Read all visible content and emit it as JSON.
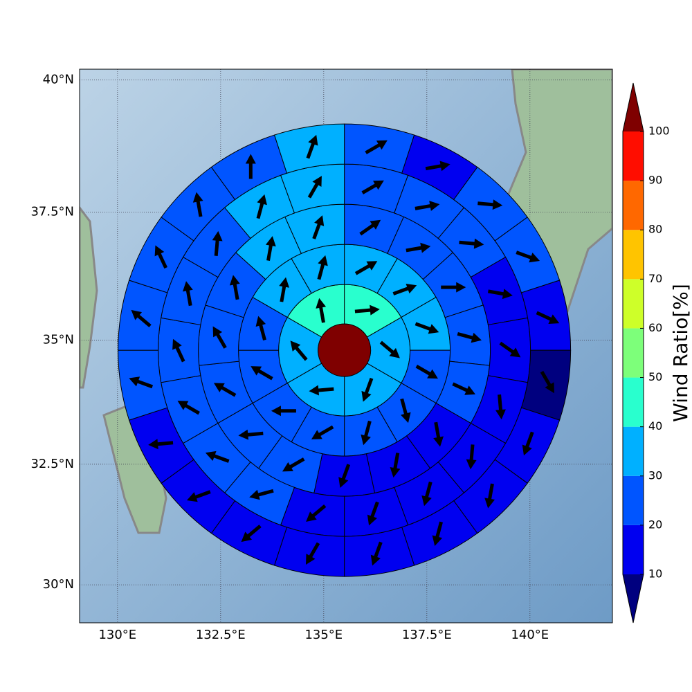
{
  "chart_data": {
    "type": "polar-grid-map",
    "projection": "mercator",
    "xlim": [
      129.08,
      142.0
    ],
    "ylim": [
      29.2,
      40.2
    ],
    "xticks": [
      {
        "value": 130,
        "label": "130°E"
      },
      {
        "value": 132.5,
        "label": "132.5°E"
      },
      {
        "value": 135,
        "label": "135°E"
      },
      {
        "value": 137.5,
        "label": "137.5°E"
      },
      {
        "value": 140,
        "label": "140°E"
      }
    ],
    "yticks": [
      {
        "value": 30,
        "label": "30°N"
      },
      {
        "value": 32.5,
        "label": "32.5°N"
      },
      {
        "value": 35,
        "label": "35°N"
      },
      {
        "value": 37.5,
        "label": "37.5°N"
      },
      {
        "value": 40,
        "label": "40°N"
      }
    ],
    "grid": true,
    "center": [
      135.5,
      34.8
    ],
    "center_value": 105,
    "rings": [
      {
        "values": [
          45,
          35,
          35,
          35,
          35,
          45
        ],
        "directions": [
          85,
          130,
          200,
          265,
          320,
          350
        ]
      },
      {
        "values": [
          35,
          35,
          35,
          25,
          25,
          25,
          25,
          25,
          25,
          25,
          35,
          35
        ],
        "directions": [
          60,
          70,
          110,
          120,
          165,
          195,
          240,
          270,
          300,
          345,
          10,
          15
        ]
      },
      {
        "values": [
          25,
          25,
          25,
          25,
          22,
          15,
          15,
          15,
          22,
          22,
          25,
          25,
          25,
          35,
          35
        ],
        "directions": [
          55,
          80,
          90,
          105,
          115,
          170,
          190,
          200,
          240,
          265,
          300,
          330,
          350,
          10,
          20
        ]
      },
      {
        "values": [
          25,
          25,
          25,
          18,
          15,
          15,
          15,
          15,
          15,
          15,
          22,
          25,
          25,
          25,
          25,
          25,
          35,
          35
        ],
        "directions": [
          60,
          80,
          95,
          100,
          125,
          175,
          185,
          195,
          200,
          230,
          255,
          290,
          300,
          335,
          350,
          5,
          15,
          30
        ]
      },
      {
        "values": [
          25,
          15,
          25,
          25,
          18,
          5,
          15,
          15,
          15,
          15,
          15,
          15,
          15,
          15,
          25,
          25,
          25,
          25,
          25,
          35
        ],
        "directions": [
          60,
          80,
          95,
          110,
          115,
          150,
          200,
          190,
          195,
          200,
          210,
          230,
          250,
          265,
          290,
          310,
          335,
          350,
          0,
          20
        ]
      }
    ],
    "colorbar": {
      "label": "Wind Ratio[%]",
      "ticks": [
        10,
        20,
        30,
        40,
        50,
        60,
        70,
        80,
        90,
        100
      ],
      "colors": [
        "#00007f",
        "#0000f0",
        "#0055ff",
        "#00b0ff",
        "#29ffce",
        "#7dff7a",
        "#ceff29",
        "#ffc400",
        "#ff6800",
        "#ff0d00",
        "#7f0000"
      ]
    }
  }
}
